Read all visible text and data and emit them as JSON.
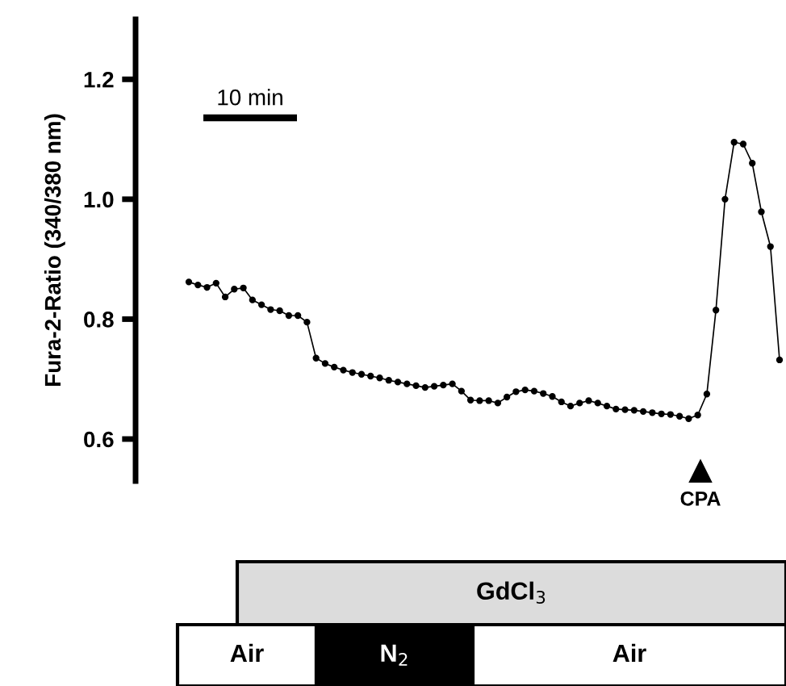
{
  "chart_data": {
    "type": "line",
    "ylabel": "Fura-2-Ratio (340/380 nm)",
    "categories": [
      null,
      null,
      null,
      null,
      null,
      null,
      null,
      null,
      null,
      null,
      null,
      null,
      null,
      null,
      null,
      null,
      null,
      null,
      null,
      null,
      null,
      null,
      null,
      null,
      null,
      null,
      null,
      null,
      null,
      null,
      null,
      null,
      null,
      null,
      null,
      null,
      null,
      null,
      null,
      null,
      null,
      null,
      null,
      null,
      null,
      null,
      null,
      null,
      null,
      null,
      null,
      null,
      null,
      null,
      null,
      null,
      null,
      null,
      null,
      null,
      null,
      null,
      null,
      null,
      null,
      null
    ],
    "series": [
      {
        "color": "#000000",
        "values": [
          0.862,
          0.857,
          0.853,
          0.86,
          0.837,
          0.85,
          0.852,
          0.832,
          0.824,
          0.816,
          0.814,
          0.806,
          0.806,
          0.795,
          0.735,
          0.726,
          0.72,
          0.715,
          0.711,
          0.708,
          0.705,
          0.702,
          0.698,
          0.695,
          0.692,
          0.689,
          0.686,
          0.688,
          0.69,
          0.692,
          0.68,
          0.665,
          0.664,
          0.664,
          0.66,
          0.67,
          0.679,
          0.682,
          0.68,
          0.676,
          0.671,
          0.662,
          0.655,
          0.66,
          0.664,
          0.66,
          0.655,
          0.65,
          0.649,
          0.648,
          0.646,
          0.644,
          0.642,
          0.641,
          0.638,
          0.634,
          0.64,
          0.675,
          0.815,
          1.0,
          1.095,
          1.092,
          1.06,
          0.979,
          0.921,
          0.732
        ]
      }
    ],
    "marker": "circle",
    "ylim": [
      0.53,
      1.3
    ],
    "yticks": [
      0.6,
      0.8,
      {
        "value": 1.0,
        "label": "1.0"
      },
      1.2
    ],
    "tick_labels": "y",
    "grid": false,
    "annotations": [
      "10 min",
      "CPA",
      "GdCl$_{3}$",
      "Air",
      "N$_{2}$",
      "Air"
    ]
  }
}
